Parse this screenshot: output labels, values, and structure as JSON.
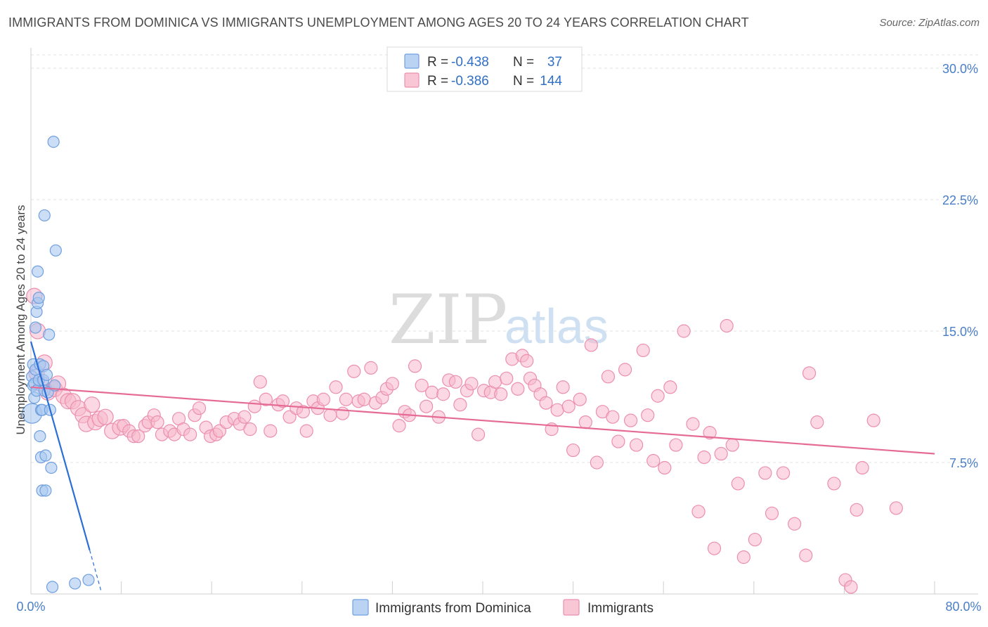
{
  "title": "IMMIGRANTS FROM DOMINICA VS IMMIGRANTS UNEMPLOYMENT AMONG AGES 20 TO 24 YEARS CORRELATION CHART",
  "source": "Source: ZipAtlas.com",
  "watermark": {
    "zip": "ZIP",
    "atlas": "atlas"
  },
  "colors": {
    "blue_fill": "#a9c8f0",
    "blue_stroke": "#6f9fe0",
    "blue_line": "#2a6fd6",
    "pink_fill": "#f7b8cc",
    "pink_stroke": "#ec8fae",
    "pink_line": "#e56b96",
    "grid": "#e3e3e3",
    "axis_text": "#4a7fc8"
  },
  "legend": {
    "rows": [
      {
        "r_label": "R = ",
        "r_value": "-0.438",
        "n_label": "N = ",
        "n_value": "37"
      },
      {
        "r_label": "R = ",
        "r_value": "-0.386",
        "n_label": "N = ",
        "n_value": "144"
      }
    ]
  },
  "bottom_legend": [
    "Immigrants from Dominica",
    "Immigrants"
  ],
  "chart_data": {
    "type": "scatter",
    "title": "IMMIGRANTS FROM DOMINICA VS IMMIGRANTS UNEMPLOYMENT AMONG AGES 20 TO 24 YEARS CORRELATION CHART",
    "xlabel": "",
    "ylabel": "Unemployment Among Ages 20 to 24 years",
    "xlim": [
      0,
      80
    ],
    "ylim": [
      0,
      30
    ],
    "x_ticks": [
      "0.0%",
      "80.0%"
    ],
    "y_ticks": [
      "7.5%",
      "15.0%",
      "22.5%",
      "30.0%"
    ],
    "y_tick_values": [
      7.5,
      15.0,
      22.5,
      30.0
    ],
    "grid": true,
    "legend_position": "top-center",
    "series": [
      {
        "name": "Immigrants from Dominica",
        "color": "#a9c8f0",
        "trend": {
          "x": [
            0,
            5.2
          ],
          "y": [
            14.4,
            2.5
          ],
          "dashed_to": [
            6.2,
            0.2
          ]
        },
        "points": [
          [
            0.1,
            10.3
          ],
          [
            0.1,
            12.4
          ],
          [
            0.2,
            11.9
          ],
          [
            0.2,
            13.1
          ],
          [
            0.3,
            11.2
          ],
          [
            0.3,
            12.0
          ],
          [
            0.4,
            15.2
          ],
          [
            0.4,
            12.8
          ],
          [
            0.5,
            11.6
          ],
          [
            0.5,
            16.1
          ],
          [
            0.6,
            18.4
          ],
          [
            0.6,
            16.6
          ],
          [
            0.7,
            16.9
          ],
          [
            0.7,
            12.2
          ],
          [
            0.8,
            13.1
          ],
          [
            0.8,
            9.0
          ],
          [
            0.9,
            10.5
          ],
          [
            0.9,
            7.8
          ],
          [
            1.0,
            10.5
          ],
          [
            1.0,
            5.9
          ],
          [
            1.1,
            12.2
          ],
          [
            1.1,
            13.0
          ],
          [
            1.2,
            21.6
          ],
          [
            1.2,
            11.6
          ],
          [
            1.3,
            7.9
          ],
          [
            1.3,
            5.9
          ],
          [
            1.4,
            12.5
          ],
          [
            1.5,
            11.5
          ],
          [
            1.6,
            14.8
          ],
          [
            1.7,
            10.5
          ],
          [
            1.8,
            7.2
          ],
          [
            1.9,
            0.4
          ],
          [
            2.0,
            25.8
          ],
          [
            2.1,
            11.9
          ],
          [
            2.2,
            19.6
          ],
          [
            3.9,
            0.6
          ],
          [
            5.1,
            0.8
          ]
        ]
      },
      {
        "name": "Immigrants",
        "color": "#f7b8cc",
        "trend": {
          "x": [
            0,
            80
          ],
          "y": [
            11.8,
            8.0
          ]
        },
        "points": [
          [
            0.3,
            17.0
          ],
          [
            0.5,
            12.6
          ],
          [
            0.6,
            15.0
          ],
          [
            0.9,
            12.0
          ],
          [
            1.2,
            13.2
          ],
          [
            1.5,
            11.5
          ],
          [
            2.1,
            11.7
          ],
          [
            2.4,
            12.0
          ],
          [
            2.9,
            11.3
          ],
          [
            3.3,
            11.0
          ],
          [
            3.7,
            11.0
          ],
          [
            4.2,
            10.6
          ],
          [
            4.6,
            10.2
          ],
          [
            4.9,
            9.7
          ],
          [
            5.4,
            10.8
          ],
          [
            5.7,
            9.8
          ],
          [
            6.1,
            10.0
          ],
          [
            6.6,
            10.1
          ],
          [
            7.2,
            9.3
          ],
          [
            7.9,
            9.5
          ],
          [
            8.2,
            9.6
          ],
          [
            8.7,
            9.3
          ],
          [
            9.1,
            9.0
          ],
          [
            9.5,
            9.0
          ],
          [
            10.1,
            9.6
          ],
          [
            10.4,
            9.8
          ],
          [
            10.9,
            10.2
          ],
          [
            11.2,
            9.8
          ],
          [
            11.6,
            9.1
          ],
          [
            12.3,
            9.3
          ],
          [
            12.7,
            9.1
          ],
          [
            13.1,
            10.0
          ],
          [
            13.5,
            9.4
          ],
          [
            14.1,
            9.1
          ],
          [
            14.5,
            10.2
          ],
          [
            14.9,
            10.6
          ],
          [
            15.5,
            9.5
          ],
          [
            15.9,
            9.0
          ],
          [
            16.4,
            9.1
          ],
          [
            16.7,
            9.3
          ],
          [
            17.3,
            9.8
          ],
          [
            18.0,
            10.0
          ],
          [
            18.5,
            9.7
          ],
          [
            18.9,
            10.1
          ],
          [
            19.4,
            9.4
          ],
          [
            19.8,
            10.7
          ],
          [
            20.3,
            12.1
          ],
          [
            20.8,
            11.1
          ],
          [
            21.2,
            9.3
          ],
          [
            21.9,
            10.8
          ],
          [
            22.3,
            11.0
          ],
          [
            22.9,
            10.1
          ],
          [
            23.5,
            10.6
          ],
          [
            24.1,
            10.4
          ],
          [
            24.4,
            9.3
          ],
          [
            25.0,
            11.0
          ],
          [
            25.4,
            10.6
          ],
          [
            25.9,
            11.1
          ],
          [
            26.5,
            10.2
          ],
          [
            27.0,
            11.8
          ],
          [
            27.6,
            10.3
          ],
          [
            27.9,
            11.1
          ],
          [
            28.6,
            12.7
          ],
          [
            29.0,
            11.0
          ],
          [
            29.5,
            11.1
          ],
          [
            30.1,
            12.9
          ],
          [
            30.5,
            10.9
          ],
          [
            31.1,
            11.2
          ],
          [
            31.5,
            11.7
          ],
          [
            32.0,
            12.0
          ],
          [
            32.6,
            9.6
          ],
          [
            33.1,
            10.4
          ],
          [
            33.5,
            10.2
          ],
          [
            34.0,
            13.0
          ],
          [
            34.6,
            11.9
          ],
          [
            35.0,
            10.7
          ],
          [
            35.5,
            11.5
          ],
          [
            36.1,
            10.1
          ],
          [
            36.5,
            11.4
          ],
          [
            37.0,
            12.2
          ],
          [
            37.6,
            12.1
          ],
          [
            38.0,
            10.8
          ],
          [
            38.6,
            11.6
          ],
          [
            39.0,
            12.0
          ],
          [
            39.6,
            9.1
          ],
          [
            40.1,
            11.6
          ],
          [
            40.7,
            11.5
          ],
          [
            41.1,
            12.1
          ],
          [
            41.6,
            11.4
          ],
          [
            42.1,
            12.3
          ],
          [
            42.6,
            13.4
          ],
          [
            43.1,
            11.7
          ],
          [
            43.5,
            13.6
          ],
          [
            43.9,
            13.3
          ],
          [
            44.2,
            12.3
          ],
          [
            44.6,
            11.9
          ],
          [
            45.1,
            11.4
          ],
          [
            45.6,
            10.9
          ],
          [
            46.1,
            9.4
          ],
          [
            46.6,
            10.5
          ],
          [
            47.1,
            11.8
          ],
          [
            47.6,
            10.7
          ],
          [
            48.0,
            8.2
          ],
          [
            48.6,
            11.1
          ],
          [
            49.1,
            9.8
          ],
          [
            49.6,
            14.2
          ],
          [
            50.1,
            7.5
          ],
          [
            50.6,
            10.4
          ],
          [
            51.1,
            12.4
          ],
          [
            51.5,
            10.1
          ],
          [
            52.0,
            8.7
          ],
          [
            52.6,
            12.8
          ],
          [
            53.1,
            9.9
          ],
          [
            53.6,
            8.5
          ],
          [
            54.2,
            13.9
          ],
          [
            54.6,
            10.2
          ],
          [
            55.1,
            7.6
          ],
          [
            55.5,
            11.3
          ],
          [
            56.1,
            7.2
          ],
          [
            56.6,
            11.8
          ],
          [
            57.1,
            8.5
          ],
          [
            57.8,
            15.0
          ],
          [
            58.6,
            9.7
          ],
          [
            59.1,
            4.7
          ],
          [
            59.6,
            7.8
          ],
          [
            60.1,
            9.2
          ],
          [
            60.5,
            2.6
          ],
          [
            61.1,
            8.0
          ],
          [
            61.6,
            15.3
          ],
          [
            62.1,
            8.5
          ],
          [
            62.6,
            6.3
          ],
          [
            63.1,
            2.1
          ],
          [
            64.1,
            3.1
          ],
          [
            65.0,
            6.9
          ],
          [
            65.6,
            4.6
          ],
          [
            66.6,
            6.9
          ],
          [
            67.6,
            4.0
          ],
          [
            68.6,
            2.2
          ],
          [
            68.9,
            12.6
          ],
          [
            69.6,
            9.8
          ],
          [
            71.1,
            6.3
          ],
          [
            72.1,
            0.8
          ],
          [
            73.1,
            4.8
          ],
          [
            73.6,
            7.2
          ],
          [
            74.6,
            9.9
          ],
          [
            76.6,
            4.9
          ],
          [
            72.6,
            0.4
          ]
        ]
      }
    ]
  }
}
